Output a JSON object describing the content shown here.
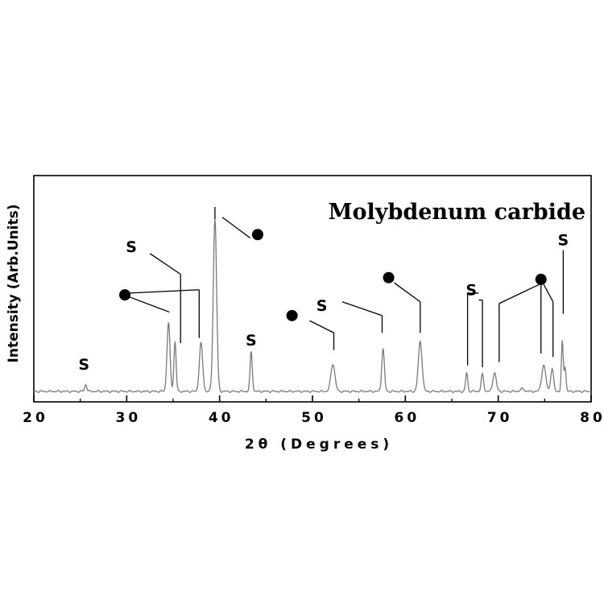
{
  "chart_data": {
    "type": "line",
    "title": "Molybdenum carbide",
    "xlabel": "2θ (Degrees)",
    "ylabel": "Intensity (Arb.Units)",
    "xlim": [
      20,
      80
    ],
    "x_ticks": [
      "20",
      "30",
      "40",
      "50",
      "60",
      "70",
      "80"
    ],
    "grid": false,
    "legend": "none",
    "line_color": "#7a7a7a",
    "baseline": 0,
    "peaks": [
      {
        "x": 25.6,
        "y": 4,
        "w": 0.12
      },
      {
        "x": 34.5,
        "y": 40,
        "w": 0.16
      },
      {
        "x": 35.2,
        "y": 29,
        "w": 0.12
      },
      {
        "x": 38.0,
        "y": 28,
        "w": 0.18
      },
      {
        "x": 39.5,
        "y": 100,
        "w": 0.18
      },
      {
        "x": 43.4,
        "y": 23,
        "w": 0.12
      },
      {
        "x": 52.2,
        "y": 16,
        "w": 0.22
      },
      {
        "x": 57.6,
        "y": 25,
        "w": 0.14
      },
      {
        "x": 61.6,
        "y": 29,
        "w": 0.2
      },
      {
        "x": 66.6,
        "y": 11,
        "w": 0.11
      },
      {
        "x": 68.3,
        "y": 10,
        "w": 0.13
      },
      {
        "x": 69.6,
        "y": 11,
        "w": 0.18
      },
      {
        "x": 72.6,
        "y": 1.5,
        "w": 0.2
      },
      {
        "x": 74.9,
        "y": 15,
        "w": 0.22
      },
      {
        "x": 75.8,
        "y": 13,
        "w": 0.16
      },
      {
        "x": 76.9,
        "y": 29,
        "w": 0.1
      },
      {
        "x": 77.2,
        "y": 14,
        "w": 0.1
      }
    ],
    "annotations": [
      {
        "marker": "S",
        "label_at": [
          25.4,
          16
        ],
        "lines": []
      },
      {
        "marker": "S",
        "label_at": [
          43.4,
          30
        ],
        "lines": []
      },
      {
        "marker": "S",
        "label_at": [
          30.5,
          84
        ],
        "lines": [
          [
            32.5,
            80,
            35.8,
            68
          ],
          [
            35.8,
            68,
            35.8,
            28
          ]
        ]
      },
      {
        "marker": "S",
        "label_at": [
          51.0,
          50
        ],
        "lines": [
          [
            53.2,
            52,
            57.5,
            44
          ],
          [
            57.5,
            44,
            57.5,
            34
          ]
        ]
      },
      {
        "marker": "S",
        "label_at": [
          67.1,
          59
        ],
        "lines": [
          [
            67.9,
            57,
            66.7,
            57
          ],
          [
            66.7,
            57,
            66.7,
            15
          ],
          [
            67.9,
            53,
            68.3,
            53
          ],
          [
            68.3,
            53,
            68.3,
            14
          ]
        ]
      },
      {
        "marker": "S",
        "label_at": [
          77.0,
          88
        ],
        "lines": [
          [
            77.0,
            82,
            77.0,
            45
          ]
        ]
      },
      {
        "marker": "dot",
        "label_at": [
          29.8,
          56
        ],
        "lines": [
          [
            30.2,
            55,
            34.6,
            46
          ],
          [
            30.2,
            57,
            37.8,
            59
          ],
          [
            37.8,
            59,
            37.8,
            31
          ]
        ]
      },
      {
        "marker": "dot",
        "label_at": [
          44.1,
          91
        ],
        "lines": [
          [
            43.3,
            89,
            40.3,
            101
          ],
          [
            39.5,
            107,
            39.5,
            100
          ]
        ]
      },
      {
        "marker": "dot",
        "label_at": [
          47.8,
          44
        ],
        "lines": [
          [
            49.7,
            41,
            52.3,
            34
          ],
          [
            52.3,
            34,
            52.3,
            24
          ]
        ]
      },
      {
        "marker": "dot",
        "label_at": [
          58.2,
          66
        ],
        "lines": [
          [
            58.8,
            63,
            61.6,
            52
          ],
          [
            61.6,
            52,
            61.6,
            34
          ]
        ]
      },
      {
        "marker": "dot",
        "label_at": [
          74.6,
          65
        ],
        "lines": [
          [
            74.4,
            62,
            70.1,
            51
          ],
          [
            70.1,
            51,
            70.1,
            17
          ],
          [
            74.6,
            63,
            74.6,
            22
          ],
          [
            74.9,
            62,
            75.9,
            52
          ],
          [
            75.9,
            52,
            75.9,
            20
          ]
        ]
      }
    ]
  }
}
